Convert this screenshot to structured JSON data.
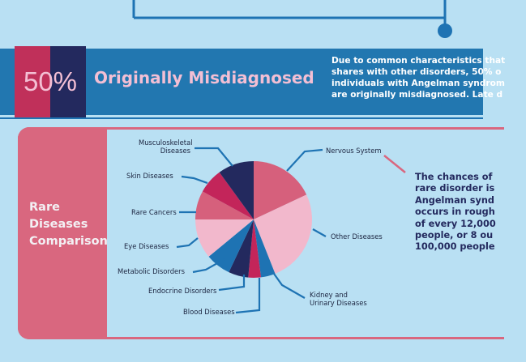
{
  "banner": {
    "percent": "50%",
    "title": "Originally Misdiagnosed",
    "text": "Due to common characteristics that\nshares with other disorders, 50% o\nindividuals with Angelman syndrom\nare originally misdiagnosed. Late d"
  },
  "panel": {
    "title": "Rare\nDiseases\nComparison",
    "side_text": "The chances of\nrare disorder is\nAngelman synd\noccurs in rough\nof every 12,000\npeople, or 8 ou\n100,000 people"
  },
  "colors": {
    "background": "#b9e0f3",
    "banner": "#2277b0",
    "accent_pink": "#d9677f",
    "navy": "#23295e",
    "line_blue": "#1e73b3"
  },
  "chart_data": {
    "type": "pie",
    "title": "",
    "slices": [
      {
        "label": "Nervous System",
        "value": 18.0,
        "color": "#d6607c"
      },
      {
        "label": "Other Diseases",
        "value": 26.0,
        "color": "#f2b8cc"
      },
      {
        "label": "Kidney and\nUrinary Diseases",
        "value": 4.0,
        "color": "#1e73b3"
      },
      {
        "label": "Blood Diseases",
        "value": 3.5,
        "color": "#c3255a"
      },
      {
        "label": "Endocrine Disorders",
        "value": 5.5,
        "color": "#23295e"
      },
      {
        "label": "Metabolic Disorders",
        "value": 7.0,
        "color": "#1e73b3"
      },
      {
        "label": "Eye Diseases",
        "value": 11.0,
        "color": "#f2b8cc"
      },
      {
        "label": "Rare Cancers",
        "value": 8.0,
        "color": "#d6607c"
      },
      {
        "label": "Skin Diseases",
        "value": 7.0,
        "color": "#c3255a"
      },
      {
        "label": "Musculoskeletal\nDiseases",
        "value": 10.0,
        "color": "#23295e"
      }
    ]
  }
}
